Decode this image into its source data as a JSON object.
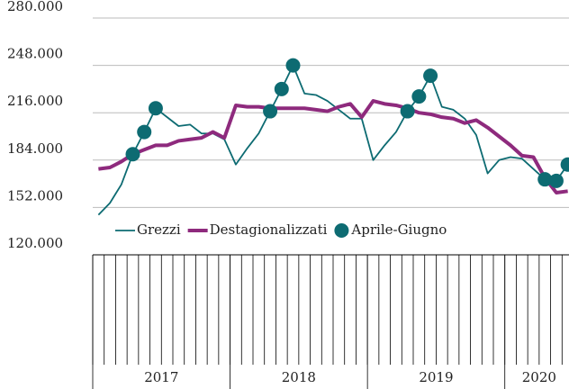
{
  "chart_data": {
    "type": "line",
    "categories": [
      null,
      null,
      null,
      null,
      null,
      null,
      null,
      null,
      null,
      null,
      null,
      null,
      null,
      null,
      null,
      null,
      null,
      null,
      null,
      null,
      null,
      null,
      null,
      null,
      null,
      null,
      null,
      null,
      null,
      null,
      null,
      null,
      null,
      null,
      null,
      null,
      null,
      null,
      null,
      null,
      null,
      null
    ],
    "x_groups": [
      {
        "label": "2017",
        "size": 12
      },
      {
        "label": "2018",
        "size": 12
      },
      {
        "label": "2019",
        "size": 12
      },
      {
        "label": "2020",
        "size": 6
      }
    ],
    "series": [
      {
        "name": "Grezzi",
        "color": "#0d6b72",
        "style": "line",
        "values": [
          147000,
          155000,
          167500,
          188000,
          203000,
          219000,
          213000,
          207000,
          208000,
          202000,
          202000,
          198000,
          181000,
          192000,
          202000,
          217000,
          232000,
          248000,
          229000,
          228000,
          224000,
          218000,
          212000,
          212000,
          184000,
          194000,
          203000,
          217000,
          227000,
          241000,
          220000,
          218000,
          212000,
          201000,
          175000,
          184000,
          186000,
          185000,
          178000,
          171000,
          170000,
          181000
        ]
      },
      {
        "name": "Destagionalizzati",
        "color": "#8e2a7d",
        "style": "thick",
        "values": [
          178000,
          179000,
          183000,
          188000,
          191000,
          194000,
          194000,
          197000,
          198000,
          199000,
          203000,
          199000,
          221000,
          220000,
          220000,
          219000,
          219000,
          219000,
          219000,
          218000,
          217000,
          220000,
          222000,
          213000,
          224000,
          222000,
          221000,
          219000,
          216000,
          215000,
          213000,
          212000,
          209000,
          211000,
          206000,
          200000,
          194000,
          187000,
          186000,
          172000,
          162000,
          163000
        ]
      },
      {
        "name": "Aprile-Giugno",
        "color": "#0d6b72",
        "style": "dots",
        "values": [
          null,
          null,
          null,
          188000,
          203000,
          219000,
          null,
          null,
          null,
          null,
          null,
          null,
          null,
          null,
          null,
          217000,
          232000,
          248000,
          null,
          null,
          null,
          null,
          null,
          null,
          null,
          null,
          null,
          217000,
          227000,
          241000,
          null,
          null,
          null,
          null,
          null,
          null,
          null,
          null,
          null,
          171000,
          170000,
          181000
        ]
      }
    ],
    "ylim": [
      120000,
      280000
    ],
    "yticks": [
      {
        "value": 120000,
        "label": "120.000"
      },
      {
        "value": 152000,
        "label": "152.000"
      },
      {
        "value": 184000,
        "label": "184.000"
      },
      {
        "value": 216000,
        "label": "216.000"
      },
      {
        "value": 248000,
        "label": "248.000"
      },
      {
        "value": 280000,
        "label": "280.000"
      }
    ],
    "grid": true
  }
}
